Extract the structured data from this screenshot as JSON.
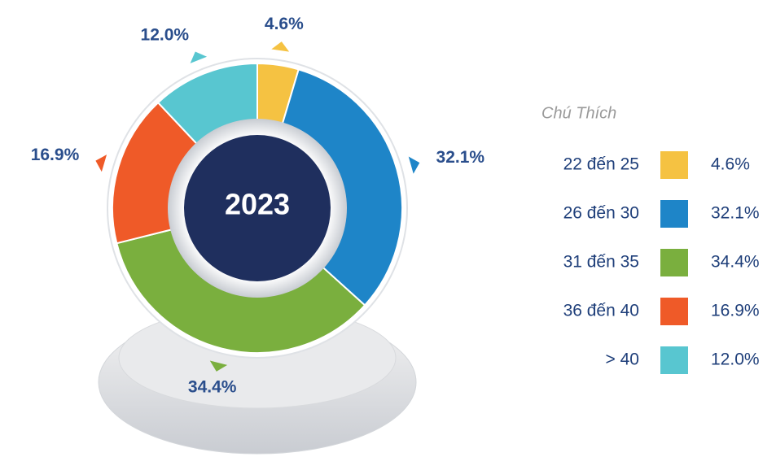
{
  "chart_data": {
    "type": "donut",
    "center_label": "2023",
    "legend_title": "Chú Thích",
    "categories": [
      "22 đến 25",
      "26 đến 30",
      "31 đến 35",
      "36 đến 40",
      "> 40"
    ],
    "values": [
      4.6,
      32.1,
      34.4,
      16.9,
      12.0
    ],
    "value_labels": [
      "4.6%",
      "32.1%",
      "34.4%",
      "16.9%",
      "12.0%"
    ],
    "colors": [
      "#f5c242",
      "#1e85c8",
      "#7aaf3e",
      "#ef5a28",
      "#58c6d0"
    ],
    "legend": "right"
  }
}
